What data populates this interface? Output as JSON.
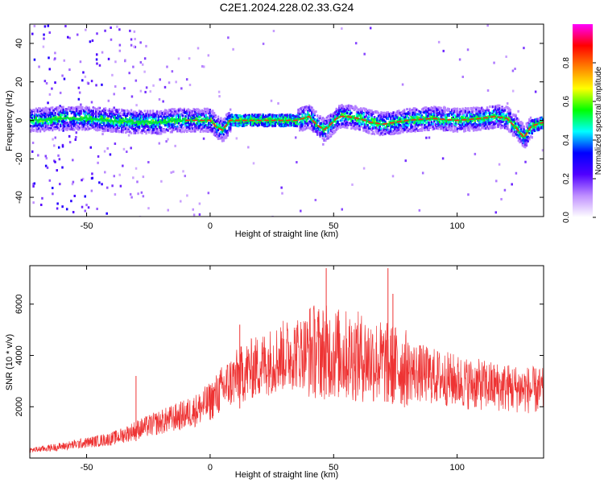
{
  "figure_title": "C2E1.2024.228.02.33.G24",
  "chart_data": [
    {
      "type": "heatmap",
      "title": "C2E1.2024.228.02.33.G24",
      "xlabel": "Height of straight line (km)",
      "ylabel": "Frequency (Hz)",
      "xlim": [
        -73,
        135
      ],
      "ylim": [
        -50,
        50
      ],
      "x_ticks": [
        -50,
        0,
        50,
        100
      ],
      "y_ticks": [
        -40,
        -20,
        0,
        20,
        40
      ],
      "grid": false,
      "colorbar": {
        "label": "Normalized spectral amplitude",
        "range": [
          0,
          1
        ],
        "ticks": [
          0.0,
          0.2,
          0.4,
          0.6,
          0.8
        ],
        "tick_labels": [
          "0.0",
          "0.2",
          "0.4",
          "0.6",
          "0.8"
        ],
        "colors": [
          "#ffffff",
          "#c090ff",
          "#5000ff",
          "#0000ff",
          "#00ffff",
          "#00ff00",
          "#ffff00",
          "#ff8000",
          "#ff0000",
          "#ff00ff"
        ]
      },
      "center_frequency_trace": {
        "x": [
          -73,
          -60,
          -50,
          -40,
          -30,
          -20,
          -15,
          -10,
          -5,
          0,
          3,
          5,
          8,
          15,
          20,
          25,
          30,
          35,
          40,
          43,
          46,
          48,
          52,
          55,
          60,
          65,
          70,
          80,
          90,
          100,
          110,
          115,
          120,
          124,
          127,
          130,
          135
        ],
        "y": [
          0,
          1,
          1,
          0,
          -1,
          -1,
          0,
          0,
          0,
          0,
          -4,
          -5,
          0,
          0,
          0,
          0,
          0,
          0,
          2,
          -2,
          -5,
          -3,
          2,
          2,
          1,
          -1,
          -2,
          0,
          1,
          0,
          1,
          2,
          1,
          -4,
          -9,
          -3,
          -1
        ]
      }
    },
    {
      "type": "line",
      "xlabel": "Height of straight line (km)",
      "ylabel": "SNR (10 * v/v)",
      "xlim": [
        -73,
        135
      ],
      "ylim": [
        0,
        7500
      ],
      "x_ticks": [
        -50,
        0,
        50,
        100
      ],
      "y_ticks": [
        2000,
        4000,
        6000
      ],
      "grid": false,
      "series": [
        {
          "color": "#ee3333",
          "x": [
            -73,
            -60,
            -50,
            -40,
            -35,
            -30,
            -20,
            -15,
            -10,
            -5,
            0,
            5,
            10,
            15,
            20,
            25,
            30,
            35,
            40,
            45,
            50,
            55,
            60,
            65,
            70,
            75,
            80,
            85,
            90,
            95,
            100,
            105,
            110,
            115,
            120,
            125,
            130,
            135
          ],
          "y": [
            300,
            450,
            600,
            750,
            900,
            1100,
            1400,
            1550,
            1700,
            1900,
            2200,
            2700,
            3100,
            3400,
            3600,
            3800,
            4000,
            4100,
            4200,
            4150,
            4100,
            4000,
            3950,
            3850,
            3700,
            3600,
            3450,
            3300,
            3200,
            3100,
            3000,
            2900,
            2850,
            2800,
            2750,
            2700,
            2650,
            2600
          ],
          "spikes": [
            {
              "x": -30,
              "y": 3200
            },
            {
              "x": 12,
              "y": 5200
            },
            {
              "x": 47,
              "y": 7400
            },
            {
              "x": 72,
              "y": 7400
            },
            {
              "x": 74,
              "y": 6400
            }
          ]
        }
      ]
    }
  ]
}
